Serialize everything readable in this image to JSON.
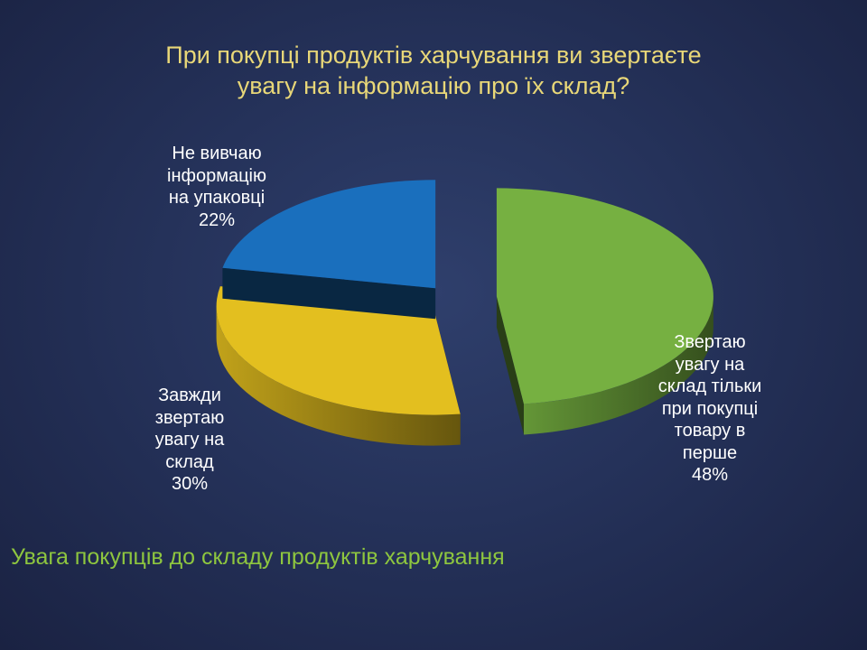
{
  "slide": {
    "title_lines": [
      "При покупці продуктів харчування ви звертаєте",
      "увагу на інформацію про їх склад?"
    ],
    "subtitle": "Увага покупців до складу продуктів харчування"
  },
  "chart_data": {
    "type": "pie",
    "style": "3d exploded",
    "title": "",
    "series": [
      {
        "label_lines": [
          "Звертаю",
          "увагу на",
          "склад тільки",
          "при покупці",
          "товару в",
          "перше"
        ],
        "value": 48,
        "value_label": "48%",
        "color": "#76b041"
      },
      {
        "label_lines": [
          "Завжди",
          "звертаю",
          "увагу на",
          "склад"
        ],
        "value": 30,
        "value_label": "30%",
        "color": "#e3bf1f"
      },
      {
        "label_lines": [
          "Не вивчаю",
          "інформацію",
          "на упаковці"
        ],
        "value": 22,
        "value_label": "22%",
        "color": "#1a6fbd"
      }
    ]
  },
  "colors": {
    "title": "#e8d778",
    "subtitle": "#8ec63f",
    "label_text": "#ffffff"
  }
}
